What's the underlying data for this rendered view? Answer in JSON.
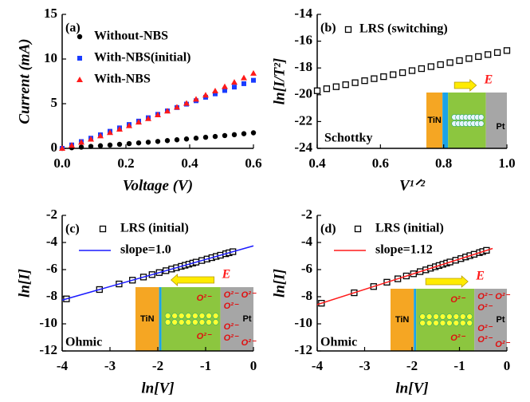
{
  "chart_data": [
    {
      "type": "scatter",
      "panel": "(a)",
      "xlabel": "Voltage (V)",
      "ylabel": "Current (mA)",
      "xlim": [
        0,
        0.6
      ],
      "ylim": [
        0,
        15
      ],
      "xticks": [
        {
          "value": 0,
          "label": "0.0"
        },
        0.2,
        0.4,
        0.6
      ],
      "yticks": [
        0,
        5,
        10,
        15
      ],
      "series": [
        {
          "name": "Without-NBS",
          "color": "#000000",
          "marker": "circle",
          "x": [
            0,
            0.03,
            0.06,
            0.09,
            0.12,
            0.15,
            0.18,
            0.21,
            0.24,
            0.27,
            0.3,
            0.33,
            0.36,
            0.39,
            0.42,
            0.45,
            0.48,
            0.51,
            0.54,
            0.57,
            0.6
          ],
          "values": [
            0,
            0.07,
            0.14,
            0.22,
            0.29,
            0.37,
            0.45,
            0.53,
            0.61,
            0.69,
            0.78,
            0.87,
            0.96,
            1.05,
            1.14,
            1.24,
            1.33,
            1.43,
            1.53,
            1.64,
            1.74
          ]
        },
        {
          "name": "With-NBS(initial)",
          "color": "#1a3cff",
          "marker": "square",
          "x": [
            0,
            0.03,
            0.06,
            0.09,
            0.12,
            0.15,
            0.18,
            0.21,
            0.24,
            0.27,
            0.3,
            0.33,
            0.36,
            0.39,
            0.42,
            0.45,
            0.48,
            0.51,
            0.54,
            0.57,
            0.6
          ],
          "values": [
            0,
            0.38,
            0.76,
            1.14,
            1.52,
            1.91,
            2.29,
            2.67,
            3.05,
            3.43,
            3.81,
            4.19,
            4.57,
            4.95,
            5.33,
            5.72,
            6.1,
            6.48,
            6.86,
            7.24,
            7.62
          ]
        },
        {
          "name": "With-NBS",
          "color": "#ff1a1a",
          "marker": "triangle",
          "x": [
            0,
            0.03,
            0.06,
            0.09,
            0.12,
            0.15,
            0.18,
            0.21,
            0.24,
            0.27,
            0.3,
            0.33,
            0.36,
            0.39,
            0.42,
            0.45,
            0.48,
            0.51,
            0.54,
            0.57,
            0.6
          ],
          "values": [
            0,
            0.34,
            0.68,
            1.03,
            1.39,
            1.76,
            2.14,
            2.53,
            2.93,
            3.33,
            3.75,
            4.17,
            4.61,
            5.05,
            5.5,
            5.96,
            6.43,
            6.91,
            7.4,
            7.89,
            8.4
          ]
        }
      ]
    },
    {
      "type": "scatter",
      "panel": "(b)",
      "xlabel": "V¹ᐟ²",
      "ylabel": "ln[I/T²]",
      "xlim": [
        0.4,
        1.0
      ],
      "ylim": [
        -24,
        -14
      ],
      "xticks": [
        0.4,
        0.6,
        0.8,
        {
          "value": 1,
          "label": "1.0"
        }
      ],
      "yticks": [
        -24,
        -22,
        -20,
        -18,
        -16,
        -14
      ],
      "annotation": "Schottky",
      "inset": {
        "left": "TiN",
        "right": "Pt",
        "field": "E"
      },
      "series": [
        {
          "name": "LRS (switching)",
          "color": "#000000",
          "marker": "open-square",
          "x": [
            0.4,
            0.43,
            0.46,
            0.49,
            0.52,
            0.55,
            0.58,
            0.61,
            0.64,
            0.67,
            0.7,
            0.73,
            0.76,
            0.79,
            0.82,
            0.85,
            0.88,
            0.91,
            0.94,
            0.97,
            1.0
          ],
          "values": [
            -19.7,
            -19.55,
            -19.4,
            -19.25,
            -19.1,
            -18.95,
            -18.8,
            -18.65,
            -18.5,
            -18.35,
            -18.2,
            -18.05,
            -17.9,
            -17.75,
            -17.6,
            -17.45,
            -17.3,
            -17.15,
            -17.0,
            -16.85,
            -16.7
          ]
        }
      ]
    },
    {
      "type": "scatter",
      "panel": "(c)",
      "xlabel": "ln[V]",
      "ylabel": "ln[I]",
      "xlim": [
        -4,
        0
      ],
      "ylim": [
        -12,
        -2
      ],
      "xticks": [
        -4,
        -3,
        -2,
        -1,
        0
      ],
      "yticks": [
        -12,
        -10,
        -8,
        -6,
        -4,
        -2
      ],
      "annotation": "Ohmic",
      "inset": {
        "left": "TiN",
        "right": "Pt",
        "field": "E",
        "ion": "O²⁻"
      },
      "series": [
        {
          "name": "LRS (initial)",
          "color": "#000000",
          "marker": "open-square",
          "x": [
            -3.91,
            -3.22,
            -2.81,
            -2.53,
            -2.3,
            -2.12,
            -1.97,
            -1.83,
            -1.71,
            -1.61,
            -1.51,
            -1.43,
            -1.35,
            -1.27,
            -1.2,
            -1.08,
            -0.97,
            -0.87,
            -0.78,
            -0.69,
            -0.58,
            -0.51,
            -0.43
          ],
          "values": [
            -8.16,
            -7.47,
            -7.06,
            -6.78,
            -6.55,
            -6.37,
            -6.22,
            -6.08,
            -5.96,
            -5.86,
            -5.76,
            -5.68,
            -5.6,
            -5.52,
            -5.45,
            -5.33,
            -5.22,
            -5.12,
            -5.03,
            -4.94,
            -4.83,
            -4.76,
            -4.68
          ]
        },
        {
          "name": "slope=1.0",
          "color": "#1a1aff",
          "marker": "line",
          "x": [
            -4,
            0
          ],
          "values": [
            -8.25,
            -4.25
          ]
        }
      ]
    },
    {
      "type": "scatter",
      "panel": "(d)",
      "xlabel": "ln[V]",
      "ylabel": "ln[I]",
      "xlim": [
        -4,
        0
      ],
      "ylim": [
        -12,
        -2
      ],
      "xticks": [
        -4,
        -3,
        -2,
        -1,
        0
      ],
      "yticks": [
        -12,
        -10,
        -8,
        -6,
        -4,
        -2
      ],
      "annotation": "Ohmic",
      "inset": {
        "left": "TiN",
        "right": "Pt",
        "field": "E",
        "ion": "O²⁻"
      },
      "series": [
        {
          "name": "LRS (initial)",
          "color": "#000000",
          "marker": "open-square",
          "x": [
            -3.91,
            -3.22,
            -2.81,
            -2.53,
            -2.3,
            -2.12,
            -1.97,
            -1.83,
            -1.71,
            -1.61,
            -1.51,
            -1.43,
            -1.35,
            -1.27,
            -1.2,
            -1.08,
            -0.97,
            -0.87,
            -0.78,
            -0.69,
            -0.58,
            -0.51,
            -0.43
          ],
          "values": [
            -8.48,
            -7.71,
            -7.25,
            -6.93,
            -6.68,
            -6.47,
            -6.31,
            -6.15,
            -6.02,
            -5.9,
            -5.79,
            -5.7,
            -5.61,
            -5.52,
            -5.44,
            -5.31,
            -5.19,
            -5.07,
            -4.97,
            -4.87,
            -4.75,
            -4.67,
            -4.58
          ]
        },
        {
          "name": "slope=1.12",
          "color": "#ff1a1a",
          "marker": "line",
          "x": [
            -4,
            -0.3
          ],
          "values": [
            -8.58,
            -4.44
          ]
        }
      ]
    }
  ]
}
